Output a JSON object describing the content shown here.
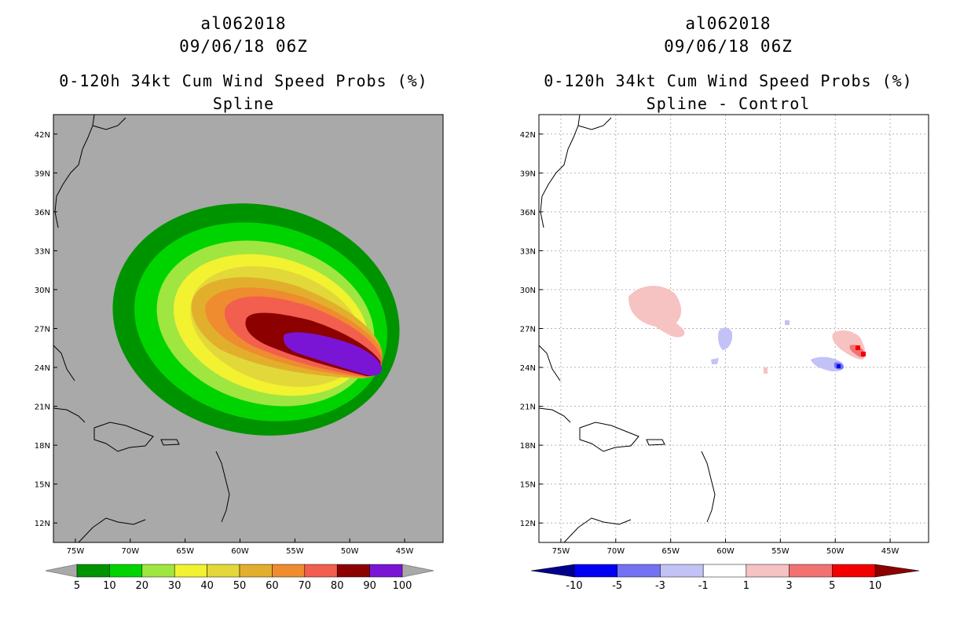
{
  "chart_data": [
    {
      "type": "heatmap",
      "panel": "left",
      "title_line1": "al062018",
      "title_line2": "09/06/18 06Z",
      "title_line3": "0-120h 34kt Cum Wind Speed Probs (%)",
      "title_line4": "Spline",
      "x_ticks": [
        "75W",
        "70W",
        "65W",
        "60W",
        "55W",
        "50W",
        "45W"
      ],
      "y_ticks": [
        "12N",
        "15N",
        "18N",
        "21N",
        "24N",
        "27N",
        "30N",
        "33N",
        "36N",
        "39N",
        "42N"
      ],
      "xlim": [
        -77,
        -41.5
      ],
      "ylim": [
        10.5,
        43.5
      ],
      "background_color": "#a9a9a9",
      "colorbar": {
        "labels": [
          "5",
          "10",
          "20",
          "30",
          "40",
          "50",
          "60",
          "70",
          "80",
          "90",
          "100"
        ],
        "colors": [
          "#009300",
          "#00d400",
          "#9fe640",
          "#f2f230",
          "#e3d839",
          "#e2af2d",
          "#ef8c2f",
          "#f25f4e",
          "#8c0000",
          "#7a15d6"
        ]
      },
      "contour_levels": [
        {
          "level": 5,
          "color": "#009300"
        },
        {
          "level": 10,
          "color": "#00d400"
        },
        {
          "level": 20,
          "color": "#9fe640"
        },
        {
          "level": 30,
          "color": "#f2f230"
        },
        {
          "level": 40,
          "color": "#e3d839"
        },
        {
          "level": 50,
          "color": "#e2af2d"
        },
        {
          "level": 60,
          "color": "#ef8c2f"
        },
        {
          "level": 70,
          "color": "#f25f4e"
        },
        {
          "level": 80,
          "color": "#8c0000"
        },
        {
          "level": 90,
          "color": "#7a15d6"
        }
      ]
    },
    {
      "type": "heatmap",
      "panel": "right",
      "title_line1": "al062018",
      "title_line2": "09/06/18 06Z",
      "title_line3": "0-120h 34kt Cum Wind Speed Probs (%)",
      "title_line4": "Spline - Control",
      "x_ticks": [
        "75W",
        "70W",
        "65W",
        "60W",
        "55W",
        "50W",
        "45W"
      ],
      "y_ticks": [
        "12N",
        "15N",
        "18N",
        "21N",
        "24N",
        "27N",
        "30N",
        "33N",
        "36N",
        "39N",
        "42N"
      ],
      "xlim": [
        -77,
        -41.5
      ],
      "ylim": [
        10.5,
        43.5
      ],
      "background_color": "#ffffff",
      "grid": true,
      "colorbar": {
        "labels": [
          "-10",
          "-5",
          "-3",
          "-1",
          "1",
          "3",
          "5",
          "10"
        ],
        "colors": [
          "#00008c",
          "#0000f2",
          "#7272f2",
          "#c2c2f6",
          "#ffffff",
          "#f6c2c2",
          "#f27272",
          "#f20000",
          "#8c0000"
        ]
      }
    }
  ]
}
